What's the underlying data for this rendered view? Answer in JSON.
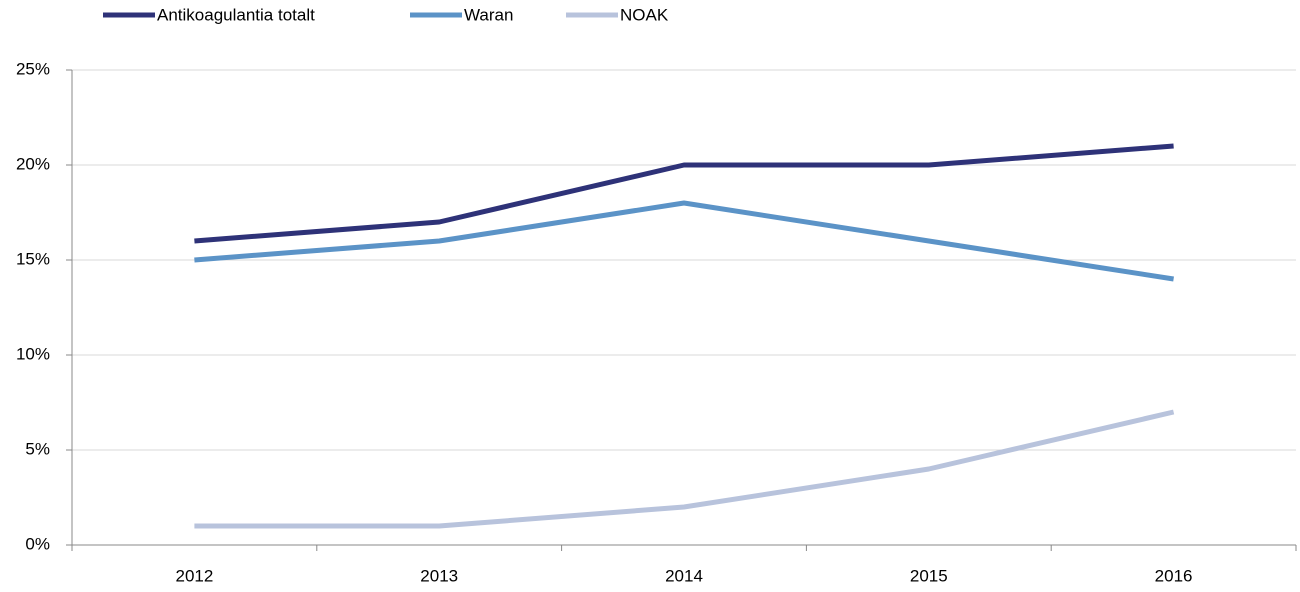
{
  "chart_data": {
    "type": "line",
    "categories": [
      "2012",
      "2013",
      "2014",
      "2015",
      "2016"
    ],
    "series": [
      {
        "name": "Antikoagulantia totalt",
        "color": "#2e3278",
        "values": [
          16,
          17,
          20,
          20,
          21
        ]
      },
      {
        "name": "Waran",
        "color": "#5b93c7",
        "values": [
          15,
          16,
          18,
          16,
          14
        ]
      },
      {
        "name": "NOAK",
        "color": "#b8c3dc",
        "values": [
          1,
          1,
          2,
          4,
          7
        ]
      }
    ],
    "ylim": [
      0,
      25
    ],
    "yticks": [
      {
        "value": 0,
        "label": "0%"
      },
      {
        "value": 5,
        "label": "5%"
      },
      {
        "value": 10,
        "label": "10%"
      },
      {
        "value": 15,
        "label": "15%"
      },
      {
        "value": 20,
        "label": "20%"
      },
      {
        "value": 25,
        "label": "25%"
      }
    ],
    "grid": true,
    "legend": "top"
  }
}
